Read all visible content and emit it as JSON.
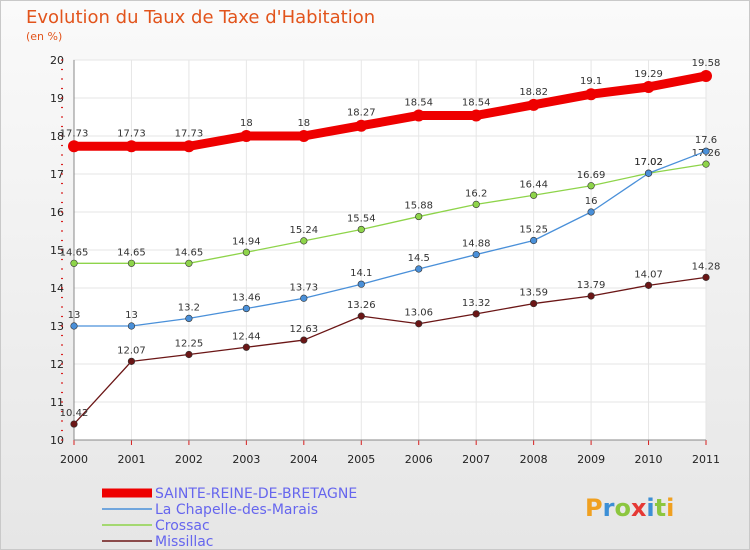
{
  "title": "Evolution du Taux de Taxe d'Habitation",
  "unit": "(en %)",
  "logo": "Proxiti",
  "chart_data": {
    "type": "line",
    "title": "Evolution du Taux de Taxe d'Habitation",
    "ylabel": "(en %)",
    "xlabel": "",
    "ylim": [
      10,
      20
    ],
    "y_ticks": [
      10,
      11,
      12,
      13,
      14,
      15,
      16,
      17,
      18,
      19,
      20
    ],
    "x": [
      "2000",
      "2001",
      "2002",
      "2003",
      "2004",
      "2005",
      "2006",
      "2007",
      "2008",
      "2009",
      "2010",
      "2011"
    ],
    "grid": true,
    "legend_position": "bottom-left",
    "series": [
      {
        "name": "SAINTE-REINE-DE-BRETAGNE",
        "color": "#ee0000",
        "values": [
          17.73,
          17.73,
          17.73,
          18,
          18,
          18.27,
          18.54,
          18.54,
          18.82,
          19.1,
          19.29,
          19.58
        ],
        "labels": [
          "17.73",
          "17.73",
          "17.73",
          "18",
          "18",
          "18.27",
          "18.54",
          "18.54",
          "18.82",
          "19.1",
          "19.29",
          "19.58"
        ]
      },
      {
        "name": "La Chapelle-des-Marais",
        "color": "#4a90d9",
        "values": [
          13,
          13,
          13.2,
          13.46,
          13.73,
          14.1,
          14.5,
          14.88,
          15.25,
          16,
          17.02,
          17.6
        ],
        "labels": [
          "13",
          "13",
          "13.2",
          "13.46",
          "13.73",
          "14.1",
          "14.5",
          "14.88",
          "15.25",
          "16",
          "17.02",
          "17.6"
        ]
      },
      {
        "name": "Crossac",
        "color": "#8ed44a",
        "values": [
          14.65,
          14.65,
          14.65,
          14.94,
          15.24,
          15.54,
          15.88,
          16.2,
          16.44,
          16.69,
          17.02,
          17.26
        ],
        "labels": [
          "14.65",
          "14.65",
          "14.65",
          "14.94",
          "15.24",
          "15.54",
          "15.88",
          "16.2",
          "16.44",
          "16.69",
          "17.02",
          "17.26"
        ]
      },
      {
        "name": "Missillac",
        "color": "#6b1616",
        "values": [
          10.42,
          12.07,
          12.25,
          12.44,
          12.63,
          13.26,
          13.06,
          13.32,
          13.59,
          13.79,
          14.07,
          14.28
        ],
        "labels": [
          "10.42",
          "12.07",
          "12.25",
          "12.44",
          "12.63",
          "13.26",
          "13.06",
          "13.32",
          "13.59",
          "13.79",
          "14.07",
          "14.28"
        ]
      }
    ]
  }
}
